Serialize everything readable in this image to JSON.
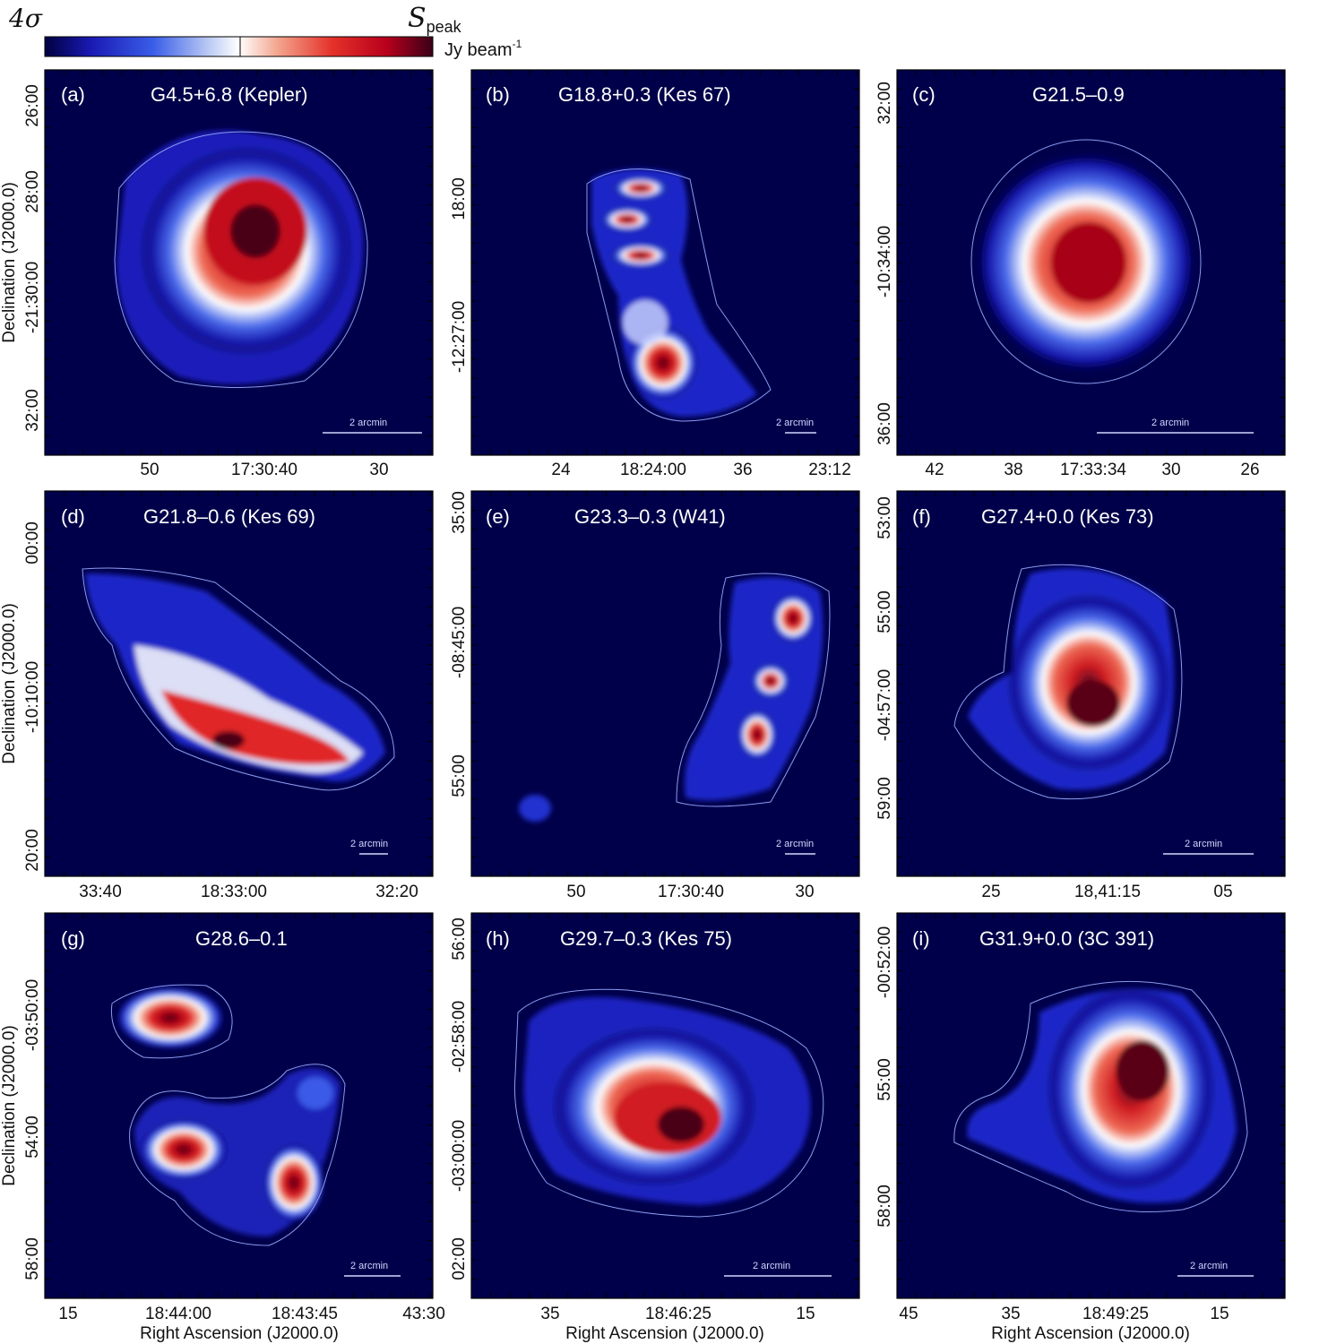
{
  "colorbar": {
    "min_label": "4σ",
    "max_label": "S",
    "max_label_sub": "peak",
    "unit": "Jy beam",
    "unit_sup": "-1",
    "colors": [
      "#000055",
      "#1a1ab4",
      "#3050e6",
      "#8fa6f0",
      "#ffffff",
      "#f4a08a",
      "#e8332a",
      "#c0001c",
      "#400018"
    ]
  },
  "axis_names": {
    "ra": "Right Ascension (J2000.0)",
    "dec": "Declination (J2000.0)"
  },
  "scalebar_label": "2 arcmin",
  "panels": [
    {
      "id": "a",
      "letter": "(a)",
      "name": "G4.5+6.8  (Kepler)",
      "xticks": [
        "50",
        "17:30:40",
        "30"
      ],
      "yticks": [
        "26:00",
        "28:00",
        "-21:30:00",
        "32:00"
      ]
    },
    {
      "id": "b",
      "letter": "(b)",
      "name": "G18.8+0.3  (Kes 67)",
      "xticks": [
        "24",
        "18:24:00",
        "36",
        "23:12"
      ],
      "yticks": [
        "18:00",
        "-12:27:00"
      ]
    },
    {
      "id": "c",
      "letter": "(c)",
      "name": "G21.5–0.9",
      "xticks": [
        "42",
        "38",
        "17:33:34",
        "30",
        "26"
      ],
      "yticks": [
        "32:00",
        "-10:34:00",
        "36:00"
      ]
    },
    {
      "id": "d",
      "letter": "(d)",
      "name": "G21.8–0.6  (Kes 69)",
      "xticks": [
        "33:40",
        "18:33:00",
        "32:20"
      ],
      "yticks": [
        "00:00",
        "-10:10:00",
        "20:00"
      ]
    },
    {
      "id": "e",
      "letter": "(e)",
      "name": "G23.3–0.3  (W41)",
      "xticks": [
        "50",
        "17:30:40",
        "30"
      ],
      "yticks": [
        "35:00",
        "-08:45:00",
        "55:00"
      ]
    },
    {
      "id": "f",
      "letter": "(f)",
      "name": "G27.4+0.0  (Kes 73)",
      "xticks": [
        "25",
        "18,41:15",
        "05"
      ],
      "yticks": [
        "53:00",
        "55:00",
        "-04:57:00",
        "59:00"
      ]
    },
    {
      "id": "g",
      "letter": "(g)",
      "name": "G28.6–0.1",
      "xticks": [
        "15",
        "18:44:00",
        "18:43:45",
        "43:30"
      ],
      "yticks": [
        "-03:50:00",
        "54:00",
        "58:00"
      ]
    },
    {
      "id": "h",
      "letter": "(h)",
      "name": "G29.7–0.3  (Kes 75)",
      "xticks": [
        "35",
        "18:46:25",
        "15"
      ],
      "yticks": [
        "56:00",
        "-02:58:00",
        "-03:00:00",
        "02:00"
      ]
    },
    {
      "id": "i",
      "letter": "(i)",
      "name": "G31.9+0.0  (3C 391)",
      "xticks": [
        "45",
        "35",
        "18:49:25",
        "15"
      ],
      "yticks": [
        "-00:52:00",
        "55:00",
        "58:00"
      ]
    }
  ]
}
